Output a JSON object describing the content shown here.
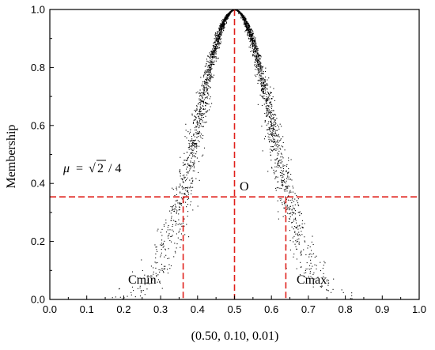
{
  "chart_data": {
    "type": "scatter",
    "title": "",
    "xlabel": "(0.50, 0.10, 0.01)",
    "ylabel": "Membership",
    "xlim": [
      0.0,
      1.0
    ],
    "ylim": [
      0.0,
      1.0
    ],
    "xticks": [
      "0.0",
      "0.1",
      "0.2",
      "0.3",
      "0.4",
      "0.5",
      "0.6",
      "0.7",
      "0.8",
      "0.9",
      "1.0"
    ],
    "yticks": [
      "0.0",
      "0.2",
      "0.4",
      "0.6",
      "0.8",
      "1.0"
    ],
    "grid": false,
    "cloud": {
      "center": 0.5,
      "sigma": 0.1,
      "sigma_spread": 0.01,
      "color": "#000000"
    },
    "reference_lines": {
      "color": "#e0201b",
      "horizontal_y": 0.3536,
      "vertical_center_x": 0.5,
      "vertical_cmin_x": 0.361,
      "vertical_cmax_x": 0.639
    },
    "annotations": {
      "mu_label": "μ = √2 / 4",
      "mu_symbol": "μ",
      "mu_equals": "=",
      "mu_root": "√",
      "mu_two": "2",
      "mu_div": "/ 4",
      "center_label": "O",
      "cmin_label": "Cmin",
      "cmax_label": "Cmax"
    }
  }
}
